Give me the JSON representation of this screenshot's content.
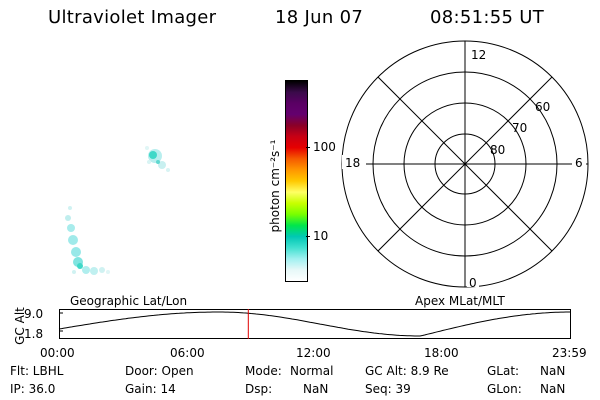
{
  "header": {
    "instrument": "Ultraviolet Imager",
    "date": "18 Jun 07",
    "time": "08:51:55 UT"
  },
  "colorbar": {
    "unit_label": "photon cm⁻²s⁻¹",
    "ticks": [
      "100",
      "10"
    ],
    "colors": [
      "#000000",
      "#3a0a4a",
      "#5a0064",
      "#64006e",
      "#8a0028",
      "#c80014",
      "#e60000",
      "#f55a00",
      "#ff9600",
      "#ffc800",
      "#ffff64",
      "#c8ff00",
      "#78ff00",
      "#00e64b",
      "#00c8b4",
      "#40e0d0",
      "#a0f0f0",
      "#e6f8f8",
      "#ffffff"
    ]
  },
  "polar": {
    "mlt_labels": {
      "top": "12",
      "left": "18",
      "right": "6",
      "bottom": "0"
    },
    "lat_labels": [
      "60",
      "70",
      "80"
    ]
  },
  "map_labels": {
    "left": "Geographic Lat/Lon",
    "right": "Apex MLat/MLT"
  },
  "altitude_panel": {
    "axis_label": "GC Alt",
    "y_ticks": [
      "9.0",
      "1.8"
    ],
    "x_ticks": [
      "00:00",
      "06:00",
      "12:00",
      "18:00",
      "23:59"
    ],
    "marker_time": "08:51:55",
    "line_color": "#000000",
    "marker_color": "#e00000"
  },
  "info": {
    "flt": "Flt: LBHL",
    "ip": "IP: 36.0",
    "door": "Door: Open",
    "gain": "Gain: 14",
    "mode_label": "Mode:",
    "mode_value": "Normal",
    "dsp_label": "Dsp:",
    "dsp_value": "NaN",
    "gcalt": "GC Alt: 8.9 Re",
    "seq": "Seq: 39",
    "glat_label": "GLat:",
    "glat_value": "NaN",
    "glon_label": "GLon:",
    "glon_value": "NaN"
  }
}
